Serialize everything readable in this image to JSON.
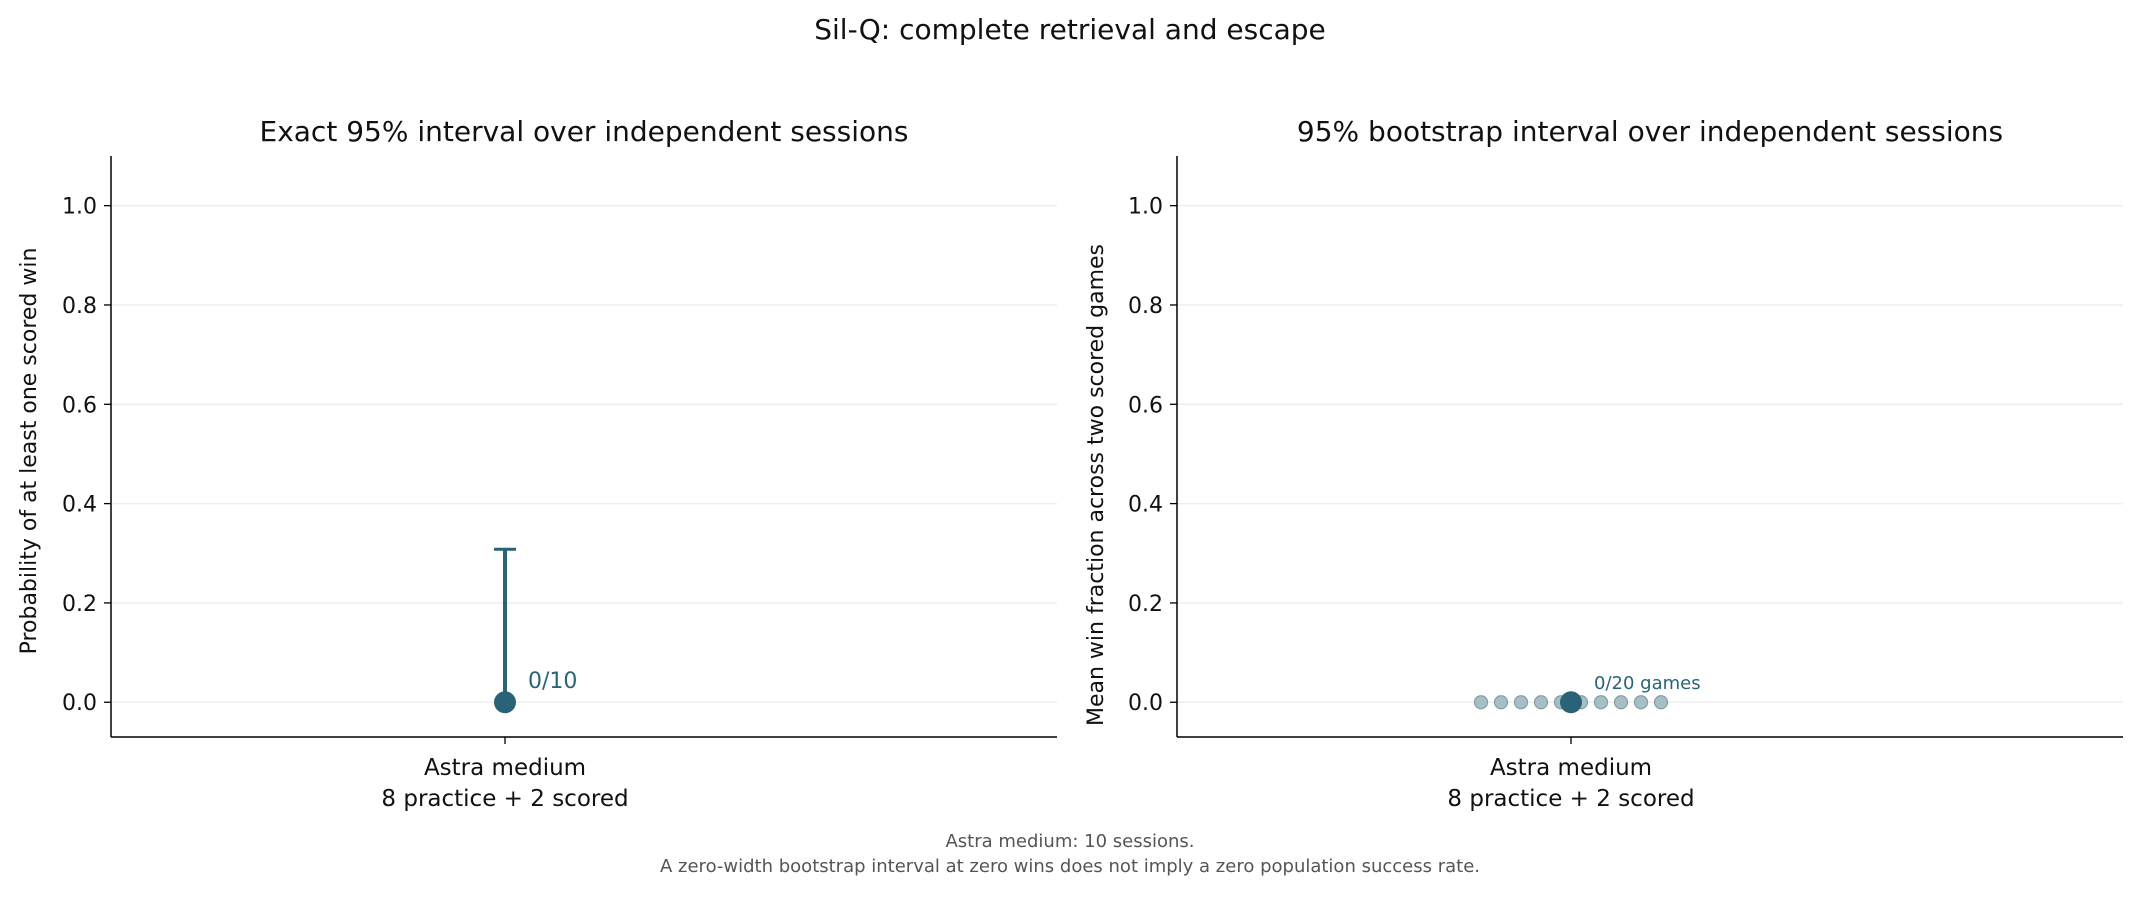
{
  "figure": {
    "title": "Sil-Q: complete retrieval and escape",
    "footnote_line1": "Astra medium: 10 sessions.",
    "footnote_line2": "A zero-width bootstrap interval at zero wins does not imply a zero population success rate."
  },
  "colors": {
    "primary": "#2a6377",
    "session_dots": "#9fb8c0",
    "grid": "#eeeeee",
    "axis": "#000000"
  },
  "chart_data": [
    {
      "type": "scatter",
      "title": "Exact 95% interval over independent sessions",
      "ylabel": "Probability of at least one scored win",
      "ylim": [
        -0.07,
        1.1
      ],
      "yticks": [
        0.0,
        0.2,
        0.4,
        0.6,
        0.8,
        1.0
      ],
      "ytick_labels": [
        "0.0",
        "0.2",
        "0.4",
        "0.6",
        "0.8",
        "1.0"
      ],
      "grid": "y",
      "categories": [
        {
          "line1": "Astra medium",
          "line2": "8 practice + 2 scored"
        }
      ],
      "points": [
        {
          "category": 0,
          "value": 0.0,
          "ci_low": 0.0,
          "ci_high": 0.308,
          "label": "0/10"
        }
      ]
    },
    {
      "type": "scatter",
      "title": "95% bootstrap interval over independent sessions",
      "ylabel": "Mean win fraction across two scored games",
      "ylim": [
        -0.07,
        1.1
      ],
      "yticks": [
        0.0,
        0.2,
        0.4,
        0.6,
        0.8,
        1.0
      ],
      "ytick_labels": [
        "0.0",
        "0.2",
        "0.4",
        "0.6",
        "0.8",
        "1.0"
      ],
      "grid": "y",
      "categories": [
        {
          "line1": "Astra medium",
          "line2": "8 practice + 2 scored"
        }
      ],
      "session_values": [
        0,
        0,
        0,
        0,
        0,
        0,
        0,
        0,
        0,
        0
      ],
      "points": [
        {
          "category": 0,
          "value": 0.0,
          "ci_low": 0.0,
          "ci_high": 0.0,
          "label": "0/20 games"
        }
      ]
    }
  ]
}
